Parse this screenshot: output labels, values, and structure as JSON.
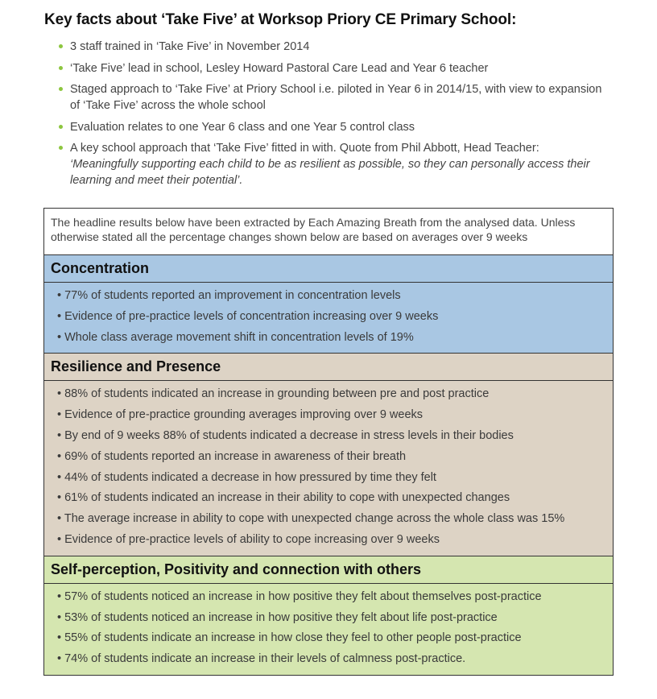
{
  "title": "Key facts about ‘Take Five’ at Worksop Priory CE Primary School:",
  "facts": [
    "3 staff trained in ‘Take Five’ in November 2014",
    "‘Take Five’ lead in school, Lesley Howard Pastoral Care Lead and Year 6 teacher",
    "Staged approach to ‘Take Five’ at Priory School i.e. piloted in Year 6 in 2014/15, with view to expansion of ‘Take Five’ across the whole school",
    "Evaluation relates to one Year 6 class and one Year 5 control class",
    "A key school approach that ‘Take Five’ fitted in with.  Quote from Phil Abbott, Head Teacher:"
  ],
  "quote": "‘Meaningfully supporting each child to be as resilient as possible, so they can personally access their learning and meet their potential’.",
  "intro": "The headline results below have been extracted by Each Amazing Breath from the analysed data. Unless otherwise stated all the percentage changes shown below are based on averages over 9 weeks",
  "sections": [
    {
      "heading": "Concentration",
      "color": "#a9c7e3",
      "items": [
        "• 77% of students reported an improvement in concentration levels",
        "• Evidence of pre-practice levels of concentration increasing over 9 weeks",
        "• Whole class average movement shift in concentration levels of 19%"
      ]
    },
    {
      "heading": "Resilience and Presence",
      "color": "#ddd3c5",
      "items": [
        "• 88% of students indicated an increase in grounding between pre and post practice",
        "• Evidence of pre-practice grounding averages improving over 9 weeks",
        "• By end of 9 weeks 88% of students indicated a decrease in stress levels in their bodies",
        "• 69% of students reported an increase in awareness of their breath",
        "• 44% of students indicated a decrease in how pressured by time they felt",
        "• 61% of students indicated an increase in their ability to cope with unexpected changes",
        "• The average increase in ability to cope with unexpected change across the whole class was 15%",
        "• Evidence of pre-practice levels of ability to cope increasing over 9 weeks"
      ]
    },
    {
      "heading": "Self-perception, Positivity and connection with others",
      "color": "#d5e6b0",
      "items": [
        "• 57% of students noticed an increase in how positive they felt about themselves post-practice",
        "• 53% of students noticed an increase in how positive they felt about life post-practice",
        "• 55% of students indicate an increase in how close they feel to other people post-practice",
        "• 74% of students indicate an increase in their levels of calmness post-practice."
      ]
    }
  ]
}
